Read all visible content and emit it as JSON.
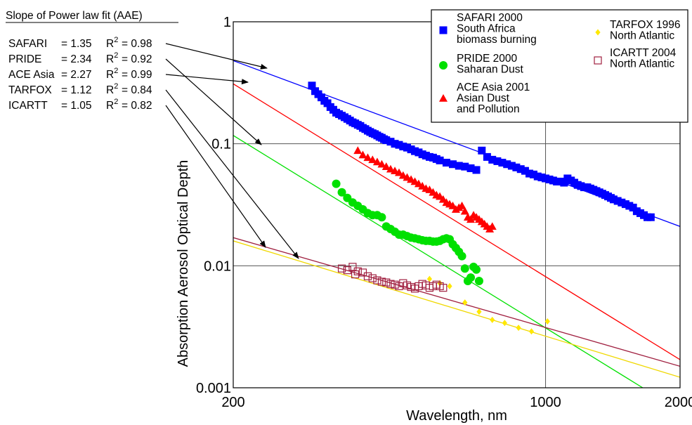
{
  "chart_data": {
    "type": "scatter",
    "title": "",
    "xlabel": "Wavelength, nm",
    "ylabel": "Absorption  Aerosol Optical Depth",
    "xscale": "log",
    "yscale": "log",
    "xlim": [
      200,
      2000
    ],
    "ylim": [
      0.001,
      1
    ],
    "xticks": [
      {
        "value": 200,
        "label": "200"
      },
      {
        "value": 1000,
        "label": "1000"
      },
      {
        "value": 2000,
        "label": "2000"
      }
    ],
    "yticks": [
      {
        "value": 0.001,
        "label": "0.001"
      },
      {
        "value": 0.01,
        "label": "0.01"
      },
      {
        "value": 0.1,
        "label": "0.1"
      },
      {
        "value": 1,
        "label": "1"
      }
    ],
    "grid": {
      "x": [
        1000
      ],
      "y": [
        0.01,
        0.1
      ]
    },
    "annotation": {
      "heading": "Slope of Power law fit (AAE)",
      "rows": [
        {
          "name": "SAFARI",
          "aae": "= 1.35",
          "r2": "= 0.98",
          "series": "safari"
        },
        {
          "name": "PRIDE",
          "aae": "= 2.34",
          "r2": "= 0.92",
          "series": "pride"
        },
        {
          "name": "ACE Asia",
          "aae": "= 2.27",
          "r2": "= 0.99",
          "series": "ace"
        },
        {
          "name": "TARFOX",
          "aae": "= 1.12",
          "r2": "= 0.84",
          "series": "tarfox"
        },
        {
          "name": "ICARTT",
          "aae": "= 1.05",
          "r2": "= 0.82",
          "series": "icartt"
        }
      ]
    },
    "legend_position": "top-right",
    "series": [
      {
        "id": "safari",
        "legend": [
          "SAFARI 2000",
          "South Africa",
          "biomass burning"
        ],
        "marker": "square",
        "color": "#0000ff",
        "fit": {
          "x": [
            200,
            2000
          ],
          "y": [
            0.48,
            0.021
          ]
        },
        "points": [
          [
            300,
            0.3
          ],
          [
            305,
            0.27
          ],
          [
            310,
            0.255
          ],
          [
            315,
            0.24
          ],
          [
            320,
            0.225
          ],
          [
            325,
            0.215
          ],
          [
            330,
            0.2
          ],
          [
            335,
            0.19
          ],
          [
            340,
            0.18
          ],
          [
            345,
            0.175
          ],
          [
            350,
            0.17
          ],
          [
            355,
            0.165
          ],
          [
            360,
            0.16
          ],
          [
            365,
            0.155
          ],
          [
            370,
            0.15
          ],
          [
            375,
            0.147
          ],
          [
            380,
            0.143
          ],
          [
            385,
            0.14
          ],
          [
            390,
            0.135
          ],
          [
            395,
            0.132
          ],
          [
            400,
            0.128
          ],
          [
            405,
            0.125
          ],
          [
            410,
            0.122
          ],
          [
            415,
            0.12
          ],
          [
            420,
            0.117
          ],
          [
            425,
            0.114
          ],
          [
            430,
            0.112
          ],
          [
            435,
            0.109
          ],
          [
            440,
            0.107
          ],
          [
            450,
            0.104
          ],
          [
            460,
            0.1
          ],
          [
            470,
            0.098
          ],
          [
            480,
            0.095
          ],
          [
            490,
            0.093
          ],
          [
            500,
            0.09
          ],
          [
            510,
            0.087
          ],
          [
            520,
            0.085
          ],
          [
            530,
            0.082
          ],
          [
            540,
            0.08
          ],
          [
            550,
            0.078
          ],
          [
            560,
            0.077
          ],
          [
            570,
            0.075
          ],
          [
            580,
            0.073
          ],
          [
            600,
            0.07
          ],
          [
            620,
            0.068
          ],
          [
            640,
            0.066
          ],
          [
            660,
            0.065
          ],
          [
            680,
            0.063
          ],
          [
            700,
            0.061
          ],
          [
            720,
            0.088
          ],
          [
            740,
            0.078
          ],
          [
            760,
            0.074
          ],
          [
            780,
            0.072
          ],
          [
            800,
            0.07
          ],
          [
            820,
            0.068
          ],
          [
            840,
            0.066
          ],
          [
            860,
            0.064
          ],
          [
            880,
            0.062
          ],
          [
            900,
            0.06
          ],
          [
            920,
            0.057
          ],
          [
            940,
            0.056
          ],
          [
            960,
            0.054
          ],
          [
            980,
            0.053
          ],
          [
            1000,
            0.052
          ],
          [
            1020,
            0.051
          ],
          [
            1040,
            0.05
          ],
          [
            1060,
            0.049
          ],
          [
            1080,
            0.049
          ],
          [
            1100,
            0.048
          ],
          [
            1120,
            0.052
          ],
          [
            1140,
            0.05
          ],
          [
            1160,
            0.048
          ],
          [
            1180,
            0.046
          ],
          [
            1200,
            0.045
          ],
          [
            1220,
            0.044
          ],
          [
            1240,
            0.044
          ],
          [
            1260,
            0.043
          ],
          [
            1280,
            0.042
          ],
          [
            1300,
            0.041
          ],
          [
            1320,
            0.04
          ],
          [
            1340,
            0.039
          ],
          [
            1360,
            0.038
          ],
          [
            1380,
            0.037
          ],
          [
            1400,
            0.036
          ],
          [
            1420,
            0.035
          ],
          [
            1450,
            0.034
          ],
          [
            1480,
            0.033
          ],
          [
            1510,
            0.032
          ],
          [
            1540,
            0.031
          ],
          [
            1570,
            0.03
          ],
          [
            1600,
            0.028
          ],
          [
            1630,
            0.027
          ],
          [
            1660,
            0.026
          ],
          [
            1690,
            0.025
          ],
          [
            1720,
            0.025
          ]
        ]
      },
      {
        "id": "pride",
        "legend": [
          "PRIDE  2000",
          "Saharan Dust"
        ],
        "marker": "circle",
        "color": "#00e000",
        "fit": {
          "x": [
            200,
            1650
          ],
          "y": [
            0.117,
            0.001
          ]
        },
        "points": [
          [
            340,
            0.047
          ],
          [
            350,
            0.04
          ],
          [
            360,
            0.036
          ],
          [
            370,
            0.033
          ],
          [
            380,
            0.031
          ],
          [
            390,
            0.029
          ],
          [
            400,
            0.027
          ],
          [
            410,
            0.026
          ],
          [
            420,
            0.026
          ],
          [
            430,
            0.025
          ],
          [
            440,
            0.021
          ],
          [
            450,
            0.02
          ],
          [
            460,
            0.019
          ],
          [
            470,
            0.018
          ],
          [
            480,
            0.018
          ],
          [
            490,
            0.0175
          ],
          [
            500,
            0.017
          ],
          [
            510,
            0.0168
          ],
          [
            520,
            0.0165
          ],
          [
            530,
            0.0162
          ],
          [
            540,
            0.016
          ],
          [
            550,
            0.016
          ],
          [
            560,
            0.0158
          ],
          [
            570,
            0.0158
          ],
          [
            580,
            0.016
          ],
          [
            590,
            0.0165
          ],
          [
            600,
            0.0168
          ],
          [
            610,
            0.0165
          ],
          [
            620,
            0.015
          ],
          [
            630,
            0.014
          ],
          [
            640,
            0.013
          ],
          [
            650,
            0.012
          ],
          [
            660,
            0.0095
          ],
          [
            670,
            0.0075
          ],
          [
            680,
            0.008
          ],
          [
            690,
            0.0098
          ],
          [
            700,
            0.0093
          ],
          [
            710,
            0.0075
          ]
        ]
      },
      {
        "id": "ace",
        "legend": [
          "ACE Asia  2001",
          "Asian Dust",
          "and Pollution"
        ],
        "marker": "triangle",
        "color": "#ff0000",
        "fit": {
          "x": [
            200,
            2000
          ],
          "y": [
            0.31,
            0.0017
          ]
        },
        "points": [
          [
            380,
            0.088
          ],
          [
            390,
            0.081
          ],
          [
            400,
            0.077
          ],
          [
            410,
            0.074
          ],
          [
            420,
            0.071
          ],
          [
            430,
            0.068
          ],
          [
            440,
            0.065
          ],
          [
            450,
            0.062
          ],
          [
            460,
            0.06
          ],
          [
            470,
            0.058
          ],
          [
            480,
            0.055
          ],
          [
            490,
            0.053
          ],
          [
            500,
            0.051
          ],
          [
            510,
            0.049
          ],
          [
            520,
            0.047
          ],
          [
            530,
            0.045
          ],
          [
            540,
            0.043
          ],
          [
            550,
            0.042
          ],
          [
            560,
            0.04
          ],
          [
            570,
            0.038
          ],
          [
            580,
            0.037
          ],
          [
            590,
            0.035
          ],
          [
            600,
            0.033
          ],
          [
            610,
            0.032
          ],
          [
            620,
            0.031
          ],
          [
            630,
            0.029
          ],
          [
            640,
            0.03
          ],
          [
            650,
            0.031
          ],
          [
            660,
            0.028
          ],
          [
            670,
            0.025
          ],
          [
            680,
            0.024
          ],
          [
            690,
            0.026
          ],
          [
            700,
            0.025
          ],
          [
            710,
            0.024
          ],
          [
            720,
            0.023
          ],
          [
            730,
            0.022
          ],
          [
            740,
            0.021
          ],
          [
            750,
            0.02
          ],
          [
            760,
            0.021
          ]
        ]
      },
      {
        "id": "tarfox",
        "legend": [
          "TARFOX  1996",
          "North Atlantic"
        ],
        "marker": "diamond",
        "color": "#ffe800",
        "fit": {
          "x": [
            200,
            2000
          ],
          "y": [
            0.016,
            0.00122
          ]
        },
        "points": [
          [
            550,
            0.0078
          ],
          [
            580,
            0.0072
          ],
          [
            610,
            0.0068
          ],
          [
            660,
            0.005
          ],
          [
            710,
            0.0042
          ],
          [
            760,
            0.0036
          ],
          [
            810,
            0.0034
          ],
          [
            870,
            0.0031
          ],
          [
            930,
            0.0029
          ],
          [
            1010,
            0.0035
          ]
        ]
      },
      {
        "id": "icartt",
        "legend": [
          "ICARTT 2004",
          "North Atlantic"
        ],
        "marker": "open-square",
        "color": "#a02040",
        "fit": {
          "x": [
            200,
            2000
          ],
          "y": [
            0.017,
            0.0015
          ]
        },
        "points": [
          [
            350,
            0.0095
          ],
          [
            360,
            0.0092
          ],
          [
            370,
            0.0098
          ],
          [
            375,
            0.0085
          ],
          [
            380,
            0.009
          ],
          [
            390,
            0.0088
          ],
          [
            400,
            0.0082
          ],
          [
            410,
            0.0079
          ],
          [
            420,
            0.0076
          ],
          [
            430,
            0.0074
          ],
          [
            440,
            0.0073
          ],
          [
            450,
            0.0071
          ],
          [
            460,
            0.007
          ],
          [
            470,
            0.0068
          ],
          [
            480,
            0.0072
          ],
          [
            490,
            0.0069
          ],
          [
            500,
            0.0067
          ],
          [
            510,
            0.0065
          ],
          [
            520,
            0.0068
          ],
          [
            530,
            0.0071
          ],
          [
            540,
            0.0069
          ],
          [
            550,
            0.0066
          ],
          [
            560,
            0.0068
          ],
          [
            570,
            0.007
          ],
          [
            580,
            0.0068
          ],
          [
            590,
            0.0066
          ]
        ]
      }
    ]
  }
}
